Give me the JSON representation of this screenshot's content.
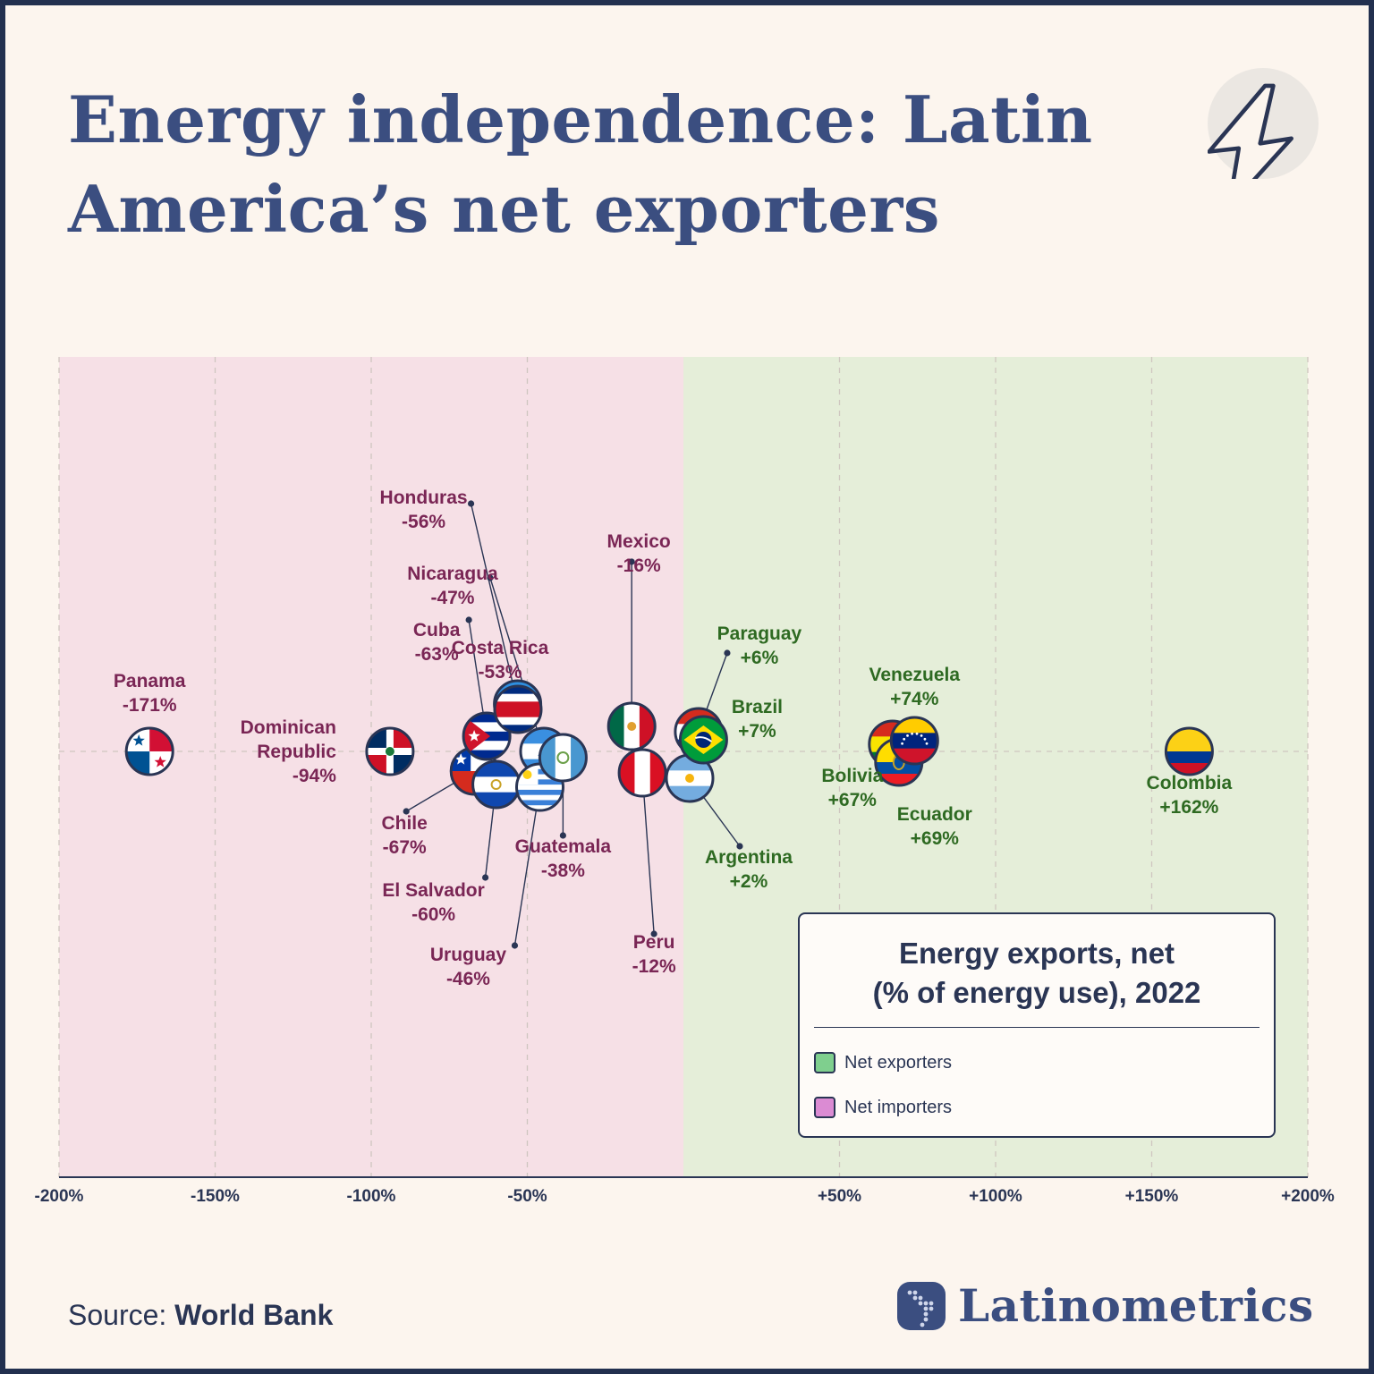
{
  "title": "Energy independence: Latin America’s net exporters",
  "icons": {
    "header": "lightning-bolt-icon",
    "brand": "latin-america-dot-map-icon"
  },
  "colors": {
    "title": "#3b4e80",
    "text": "#2a3554",
    "importer_label": "#7a2655",
    "exporter_label": "#2e6a22",
    "importer_zone": "#f6e0e6",
    "exporter_zone": "#e5eed9",
    "exporter_swatch": "#7fcf8e",
    "importer_swatch": "#db8bd3"
  },
  "legend": {
    "title_line1": "Energy exports, net",
    "title_line2": "(% of energy use), 2022",
    "items": [
      {
        "label": "Net exporters"
      },
      {
        "label": "Net importers"
      }
    ]
  },
  "source": {
    "prefix": "Source:",
    "name": "World Bank"
  },
  "brand": "Latinometrics",
  "chart_data": {
    "type": "scatter",
    "title": "Energy exports, net (% of energy use), 2022",
    "xlim": [
      -200,
      200
    ],
    "x_ticks": [
      "-200%",
      "-150%",
      "-100%",
      "-50%",
      "+50%",
      "+100%",
      "+150%",
      "+200%"
    ],
    "grid": true,
    "legend_position": "bottom-right",
    "points": [
      {
        "country": "Panama",
        "label_line1": "Panama",
        "value": -171,
        "value_label": "-171%",
        "flag": "panama"
      },
      {
        "country": "Dominican Republic",
        "label_line1": "Dominican",
        "label_line2": "Republic",
        "value": -94,
        "value_label": "-94%",
        "flag": "dominican-republic"
      },
      {
        "country": "Chile",
        "label_line1": "Chile",
        "value": -67,
        "value_label": "-67%",
        "flag": "chile"
      },
      {
        "country": "Cuba",
        "label_line1": "Cuba",
        "value": -63,
        "value_label": "-63%",
        "flag": "cuba"
      },
      {
        "country": "El Salvador",
        "label_line1": "El Salvador",
        "value": -60,
        "value_label": "-60%",
        "flag": "el-salvador"
      },
      {
        "country": "Honduras",
        "label_line1": "Honduras",
        "value": -56,
        "value_label": "-56%",
        "flag": "honduras"
      },
      {
        "country": "Costa Rica",
        "label_line1": "Costa Rica",
        "value": -53,
        "value_label": "-53%",
        "flag": "costa-rica"
      },
      {
        "country": "Nicaragua",
        "label_line1": "Nicaragua",
        "value": -47,
        "value_label": "-47%",
        "flag": "nicaragua"
      },
      {
        "country": "Uruguay",
        "label_line1": "Uruguay",
        "value": -46,
        "value_label": "-46%",
        "flag": "uruguay"
      },
      {
        "country": "Guatemala",
        "label_line1": "Guatemala",
        "value": -38,
        "value_label": "-38%",
        "flag": "guatemala"
      },
      {
        "country": "Mexico",
        "label_line1": "Mexico",
        "value": -16,
        "value_label": "-16%",
        "flag": "mexico"
      },
      {
        "country": "Peru",
        "label_line1": "Peru",
        "value": -12,
        "value_label": "-12%",
        "flag": "peru"
      },
      {
        "country": "Argentina",
        "label_line1": "Argentina",
        "value": 2,
        "value_label": "+2%",
        "flag": "argentina"
      },
      {
        "country": "Paraguay",
        "label_line1": "Paraguay",
        "value": 6,
        "value_label": "+6%",
        "flag": "paraguay"
      },
      {
        "country": "Brazil",
        "label_line1": "Brazil",
        "value": 7,
        "value_label": "+7%",
        "flag": "brazil"
      },
      {
        "country": "Bolivia",
        "label_line1": "Bolivia",
        "value": 67,
        "value_label": "+67%",
        "flag": "bolivia"
      },
      {
        "country": "Ecuador",
        "label_line1": "Ecuador",
        "value": 69,
        "value_label": "+69%",
        "flag": "ecuador"
      },
      {
        "country": "Venezuela",
        "label_line1": "Venezuela",
        "value": 74,
        "value_label": "+74%",
        "flag": "venezuela"
      },
      {
        "country": "Colombia",
        "label_line1": "Colombia",
        "value": 162,
        "value_label": "+162%",
        "flag": "colombia"
      }
    ]
  }
}
